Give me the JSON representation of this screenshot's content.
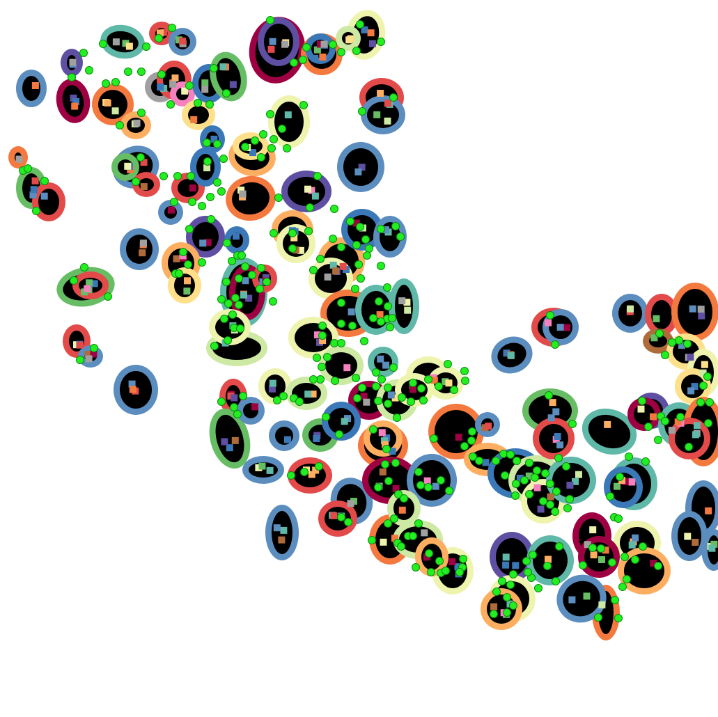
{
  "image": {
    "kind": "cell segmentation overlay",
    "background": "#ffffff",
    "cell_fill": "#000000",
    "marker_color": "#22ee22",
    "marker_stroke": "#0a8a0a"
  },
  "palette": {
    "steel_blue": "#5b8dbf",
    "dark_red": "#9e0142",
    "red": "#e34a4a",
    "orange": "#f4793e",
    "light_orange": "#fdae61",
    "pale_yellow": "#fee08b",
    "cream": "#eef3ad",
    "pale_green": "#cde9a3",
    "green": "#66bd63",
    "teal": "#5fb8a8",
    "blue": "#3b78b8",
    "purple": "#5e4fa2",
    "pink": "#f781bf",
    "gray": "#a0a0a0",
    "brown": "#b06b3a"
  }
}
